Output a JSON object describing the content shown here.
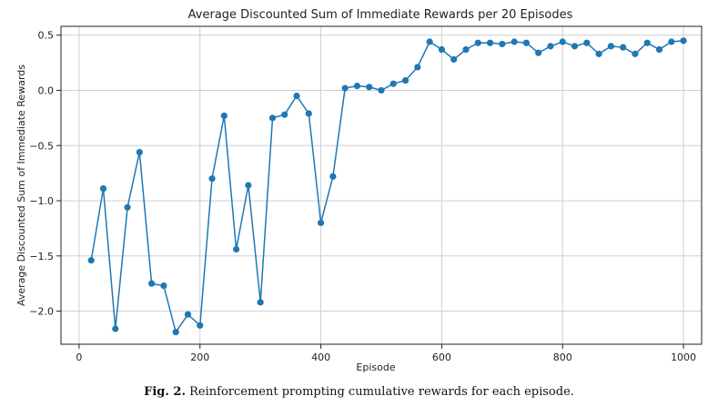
{
  "chart_data": {
    "type": "line",
    "title": "Average Discounted Sum of Immediate Rewards per 20 Episodes",
    "xlabel": "Episode",
    "ylabel": "Average Discounted Sum of Immediate Rewards",
    "xlim": [
      -30,
      1030
    ],
    "ylim": [
      -2.3,
      0.58
    ],
    "xticks": [
      0,
      200,
      400,
      600,
      800,
      1000
    ],
    "yticks": [
      0.5,
      0.0,
      -0.5,
      -1.0,
      -1.5,
      -2.0
    ],
    "ytick_labels": [
      "0.5",
      "0.0",
      "−0.5",
      "−1.0",
      "−1.5",
      "−2.0"
    ],
    "grid": true,
    "series": [
      {
        "color": "#1f77b4",
        "x": [
          20,
          40,
          60,
          80,
          100,
          120,
          140,
          160,
          180,
          200,
          220,
          240,
          260,
          280,
          300,
          320,
          340,
          360,
          380,
          400,
          420,
          440,
          460,
          480,
          500,
          520,
          540,
          560,
          580,
          600,
          620,
          640,
          660,
          680,
          700,
          720,
          740,
          760,
          780,
          800,
          820,
          840,
          860,
          880,
          900,
          920,
          940,
          960,
          980,
          1000
        ],
        "y": [
          -1.54,
          -0.89,
          -2.16,
          -1.06,
          -0.56,
          -1.75,
          -1.77,
          -2.19,
          -2.03,
          -2.13,
          -0.8,
          -0.23,
          -1.44,
          -0.86,
          -1.92,
          -0.25,
          -0.22,
          -0.05,
          -0.21,
          -1.2,
          -0.78,
          0.02,
          0.04,
          0.03,
          0.0,
          0.06,
          0.09,
          0.21,
          0.44,
          0.37,
          0.28,
          0.37,
          0.43,
          0.43,
          0.42,
          0.44,
          0.43,
          0.34,
          0.4,
          0.44,
          0.4,
          0.43,
          0.33,
          0.4,
          0.39,
          0.33,
          0.43,
          0.37,
          0.44,
          0.45
        ]
      }
    ]
  },
  "caption": {
    "label": "Fig. 2.",
    "text": "Reinforcement prompting cumulative rewards for each episode."
  }
}
